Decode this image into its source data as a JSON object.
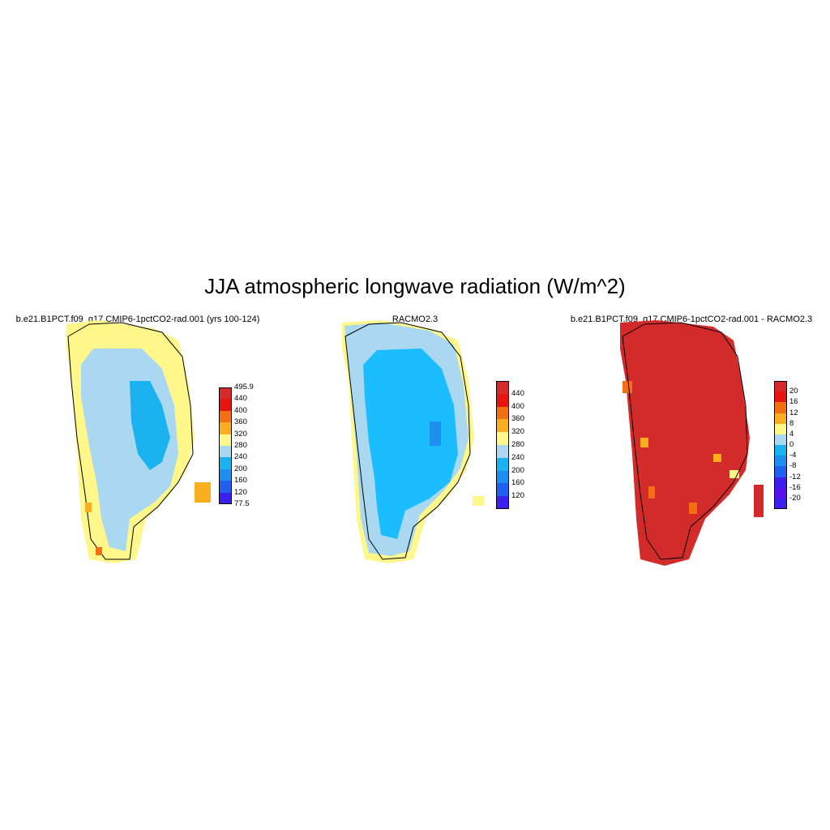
{
  "title": "JJA atmospheric longwave radiation (W/m^2)",
  "panels": [
    {
      "title": "b.e21.B1PCT.f09_g17.CMIP6-1pctCO2-rad.001 (yrs 100-124)",
      "fill": "#a9d8f0",
      "margin": "#fff78a",
      "colorbar": {
        "labels": [
          "495.9",
          "440",
          "400",
          "360",
          "320",
          "280",
          "240",
          "200",
          "160",
          "120",
          "77.5"
        ],
        "colors": [
          "#d7282a",
          "#e8140f",
          "#f36f12",
          "#f9ad1f",
          "#fff78a",
          "#a9d8f0",
          "#1ab3f0",
          "#1d8ff0",
          "#2060f0",
          "#3d1ff0"
        ]
      }
    },
    {
      "title": "RACMO2.3",
      "fill": "#1bbdff",
      "margin": "#a9d8f0",
      "colorbar": {
        "labels": [
          "440",
          "400",
          "360",
          "320",
          "280",
          "240",
          "200",
          "160",
          "120"
        ],
        "colors": [
          "#d7282a",
          "#e8140f",
          "#f36f12",
          "#f9ad1f",
          "#fff78a",
          "#a9d8f0",
          "#1ab3f0",
          "#1d8ff0",
          "#2060f0",
          "#3d1ff0"
        ]
      }
    },
    {
      "title": "b.e21.B1PCT.f09_g17.CMIP6-1pctCO2-rad.001 - RACMO2.3",
      "fill": "#d32a2a",
      "margin": "#f36f12",
      "colorbar": {
        "labels": [
          "20",
          "16",
          "12",
          "8",
          "4",
          "0",
          "-4",
          "-8",
          "-12",
          "-16",
          "-20"
        ],
        "colors": [
          "#d7282a",
          "#e8140f",
          "#f36f12",
          "#f9ad1f",
          "#fff78a",
          "#a9d8f0",
          "#1ab3f0",
          "#1d8ff0",
          "#2060f0",
          "#3d1ff0",
          "#5a10f0",
          "#3d1ff0"
        ]
      }
    }
  ]
}
